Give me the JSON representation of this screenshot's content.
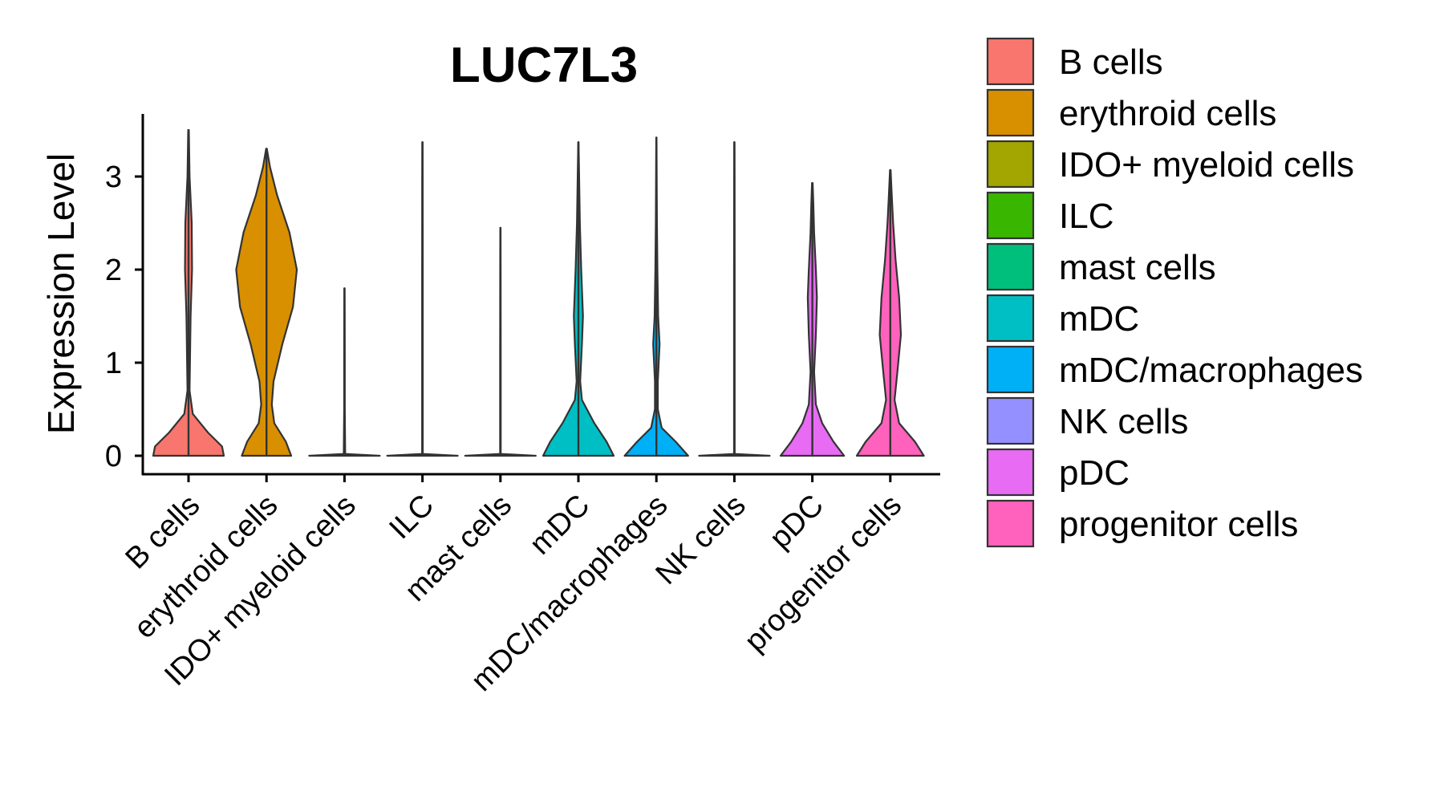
{
  "chart_data": {
    "type": "violin",
    "title": "LUC7L3",
    "xlabel": "",
    "ylabel": "Expression Level",
    "ylim": [
      -0.15,
      3.65
    ],
    "yticks": [
      0,
      1,
      2,
      3
    ],
    "categories": [
      "B cells",
      "erythroid cells",
      "IDO+ myeloid cells",
      "ILC",
      "mast cells",
      "mDC",
      "mDC/macrophages",
      "NK cells",
      "pDC",
      "progenitor cells"
    ],
    "colors": [
      "#F8766D",
      "#D89000",
      "#A3A500",
      "#39B600",
      "#00BF7D",
      "#00BFC4",
      "#00B0F6",
      "#9590FF",
      "#E76BF3",
      "#FF62BC"
    ],
    "max_expression": [
      3.5,
      3.3,
      1.8,
      3.37,
      2.45,
      3.37,
      3.42,
      3.37,
      2.93,
      3.07
    ],
    "profiles": [
      [
        [
          0,
          1.0
        ],
        [
          0.1,
          0.95
        ],
        [
          0.25,
          0.55
        ],
        [
          0.45,
          0.12
        ],
        [
          0.7,
          0.03
        ],
        [
          1.0,
          0.04
        ],
        [
          1.5,
          0.06
        ],
        [
          2.0,
          0.1
        ],
        [
          2.5,
          0.09
        ],
        [
          3.0,
          0.03
        ],
        [
          3.5,
          0.01
        ]
      ],
      [
        [
          0,
          0.7
        ],
        [
          0.15,
          0.55
        ],
        [
          0.35,
          0.22
        ],
        [
          0.55,
          0.15
        ],
        [
          0.8,
          0.2
        ],
        [
          1.2,
          0.45
        ],
        [
          1.6,
          0.75
        ],
        [
          2.0,
          0.86
        ],
        [
          2.4,
          0.65
        ],
        [
          2.8,
          0.3
        ],
        [
          3.1,
          0.1
        ],
        [
          3.3,
          0.01
        ]
      ],
      [
        [
          0,
          1.0
        ],
        [
          0.02,
          0.02
        ],
        [
          0.5,
          0.008
        ],
        [
          1.0,
          0.008
        ],
        [
          1.5,
          0.006
        ],
        [
          1.8,
          0.004
        ]
      ],
      [
        [
          0,
          1.0
        ],
        [
          0.02,
          0.01
        ],
        [
          1.0,
          0.008
        ],
        [
          2.0,
          0.008
        ],
        [
          3.0,
          0.006
        ],
        [
          3.37,
          0.004
        ]
      ],
      [
        [
          0,
          1.0
        ],
        [
          0.02,
          0.01
        ],
        [
          1.0,
          0.008
        ],
        [
          2.0,
          0.006
        ],
        [
          2.45,
          0.004
        ]
      ],
      [
        [
          0,
          1.0
        ],
        [
          0.15,
          0.8
        ],
        [
          0.35,
          0.45
        ],
        [
          0.6,
          0.1
        ],
        [
          0.8,
          0.05
        ],
        [
          1.2,
          0.1
        ],
        [
          1.5,
          0.13
        ],
        [
          2.0,
          0.08
        ],
        [
          2.5,
          0.04
        ],
        [
          3.0,
          0.02
        ],
        [
          3.37,
          0.005
        ]
      ],
      [
        [
          0,
          0.9
        ],
        [
          0.15,
          0.55
        ],
        [
          0.3,
          0.15
        ],
        [
          0.5,
          0.04
        ],
        [
          0.8,
          0.04
        ],
        [
          1.2,
          0.09
        ],
        [
          1.5,
          0.05
        ],
        [
          2.0,
          0.03
        ],
        [
          2.5,
          0.015
        ],
        [
          3.0,
          0.01
        ],
        [
          3.42,
          0.005
        ]
      ],
      [
        [
          0,
          1.0
        ],
        [
          0.02,
          0.01
        ],
        [
          1.0,
          0.008
        ],
        [
          2.0,
          0.008
        ],
        [
          3.0,
          0.006
        ],
        [
          3.37,
          0.004
        ]
      ],
      [
        [
          0,
          0.9
        ],
        [
          0.15,
          0.6
        ],
        [
          0.35,
          0.28
        ],
        [
          0.55,
          0.1
        ],
        [
          0.9,
          0.05
        ],
        [
          1.3,
          0.1
        ],
        [
          1.7,
          0.13
        ],
        [
          2.0,
          0.1
        ],
        [
          2.4,
          0.05
        ],
        [
          2.7,
          0.03
        ],
        [
          2.93,
          0.01
        ]
      ],
      [
        [
          0,
          0.95
        ],
        [
          0.15,
          0.7
        ],
        [
          0.35,
          0.25
        ],
        [
          0.6,
          0.12
        ],
        [
          0.9,
          0.2
        ],
        [
          1.3,
          0.3
        ],
        [
          1.7,
          0.25
        ],
        [
          2.1,
          0.15
        ],
        [
          2.5,
          0.08
        ],
        [
          2.8,
          0.04
        ],
        [
          3.07,
          0.01
        ]
      ]
    ],
    "legend": {
      "position": "right",
      "entries": [
        "B cells",
        "erythroid cells",
        "IDO+ myeloid cells",
        "ILC",
        "mast cells",
        "mDC",
        "mDC/macrophages",
        "NK cells",
        "pDC",
        "progenitor cells"
      ]
    }
  }
}
